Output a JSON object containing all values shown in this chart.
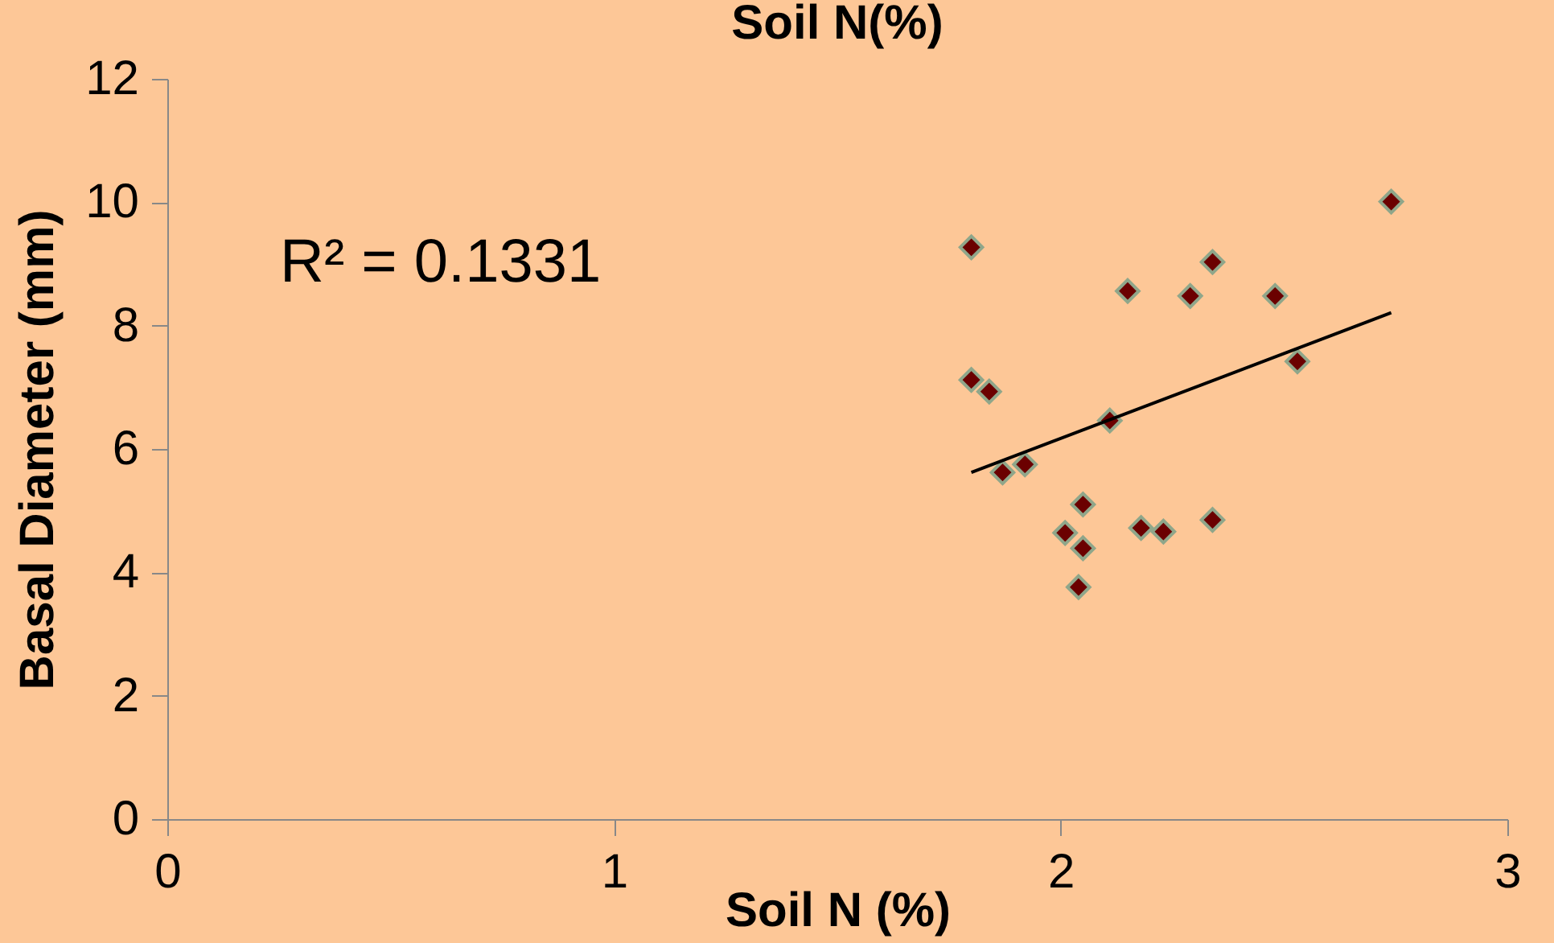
{
  "chart_data": {
    "type": "scatter",
    "title": "Soil N(%)",
    "xlabel": "Soil N (%)",
    "ylabel": "Basal Diameter (mm)",
    "xlim": [
      0,
      3
    ],
    "xticks": [
      0,
      1,
      2,
      3
    ],
    "ylim": [
      0,
      12
    ],
    "yticks": [
      0,
      2,
      4,
      6,
      8,
      10,
      12
    ],
    "grid": false,
    "marker": "diamond",
    "annotations": [
      "R² = 0.1331"
    ],
    "series": [
      {
        "color": "#6b0000",
        "x": [
          1.8,
          1.8,
          1.84,
          1.87,
          1.92,
          2.11,
          2.15,
          2.29,
          2.34,
          2.48,
          2.53,
          2.74,
          2.05,
          2.01,
          2.05,
          2.04,
          2.18,
          2.23,
          2.34
        ],
        "values": [
          9.27,
          7.12,
          6.93,
          5.62,
          5.75,
          6.46,
          8.56,
          8.48,
          9.03,
          8.48,
          7.42,
          10.01,
          5.1,
          4.64,
          4.39,
          3.76,
          4.72,
          4.66,
          4.85
        ]
      },
      {
        "type": "line",
        "color": "#000000",
        "x": [
          1.8,
          2.74
        ],
        "values": [
          5.62,
          8.21
        ],
        "line_style": "solid",
        "marker": "none"
      }
    ]
  }
}
